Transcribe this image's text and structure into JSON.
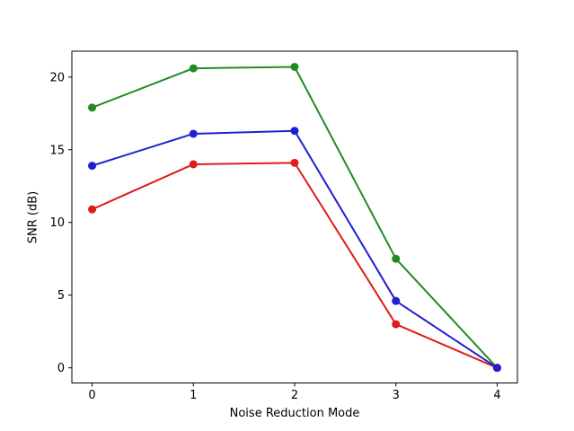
{
  "figure": {
    "background": "#ffffff",
    "axis_color": "#000000"
  },
  "chart_data": {
    "type": "line",
    "x": [
      0,
      1,
      2,
      3,
      4
    ],
    "series": [
      {
        "name": "green-series",
        "color": "#228b22",
        "values": [
          17.9,
          20.6,
          20.7,
          7.5,
          0.0
        ]
      },
      {
        "name": "red-series",
        "color": "#e01b1b",
        "values": [
          10.9,
          14.0,
          14.1,
          3.0,
          0.0
        ]
      },
      {
        "name": "blue-series",
        "color": "#1f1fd1",
        "values": [
          13.9,
          16.1,
          16.3,
          4.6,
          0.0
        ]
      }
    ],
    "title": "",
    "xlabel": "Noise Reduction Mode",
    "ylabel": "SNR (dB)",
    "xlim": [
      -0.2,
      4.2
    ],
    "ylim": [
      -1.04,
      21.78
    ],
    "xticks": [
      "0",
      "1",
      "2",
      "3",
      "4"
    ],
    "xtick_values": [
      0,
      1,
      2,
      3,
      4
    ],
    "yticks": [
      "0",
      "5",
      "10",
      "15",
      "20"
    ],
    "ytick_values": [
      0,
      5,
      10,
      15,
      20
    ],
    "grid": false,
    "legend": null,
    "marker": "circle",
    "line_width": 2,
    "marker_radius": 4.5
  }
}
